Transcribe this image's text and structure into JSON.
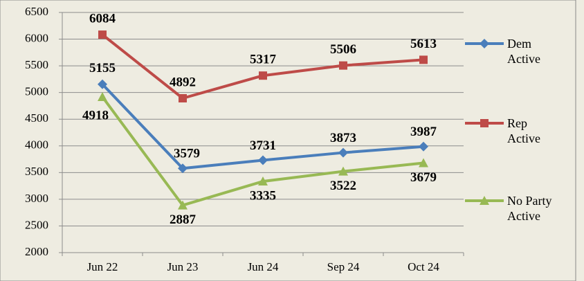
{
  "chart_data": {
    "type": "line",
    "categories": [
      "Jun 22",
      "Jun 23",
      "Jun 24",
      "Sep 24",
      "Oct 24"
    ],
    "series": [
      {
        "name": "Dem Active",
        "color": "#4a7ebb",
        "marker": "diamond",
        "values": [
          5155,
          3579,
          3731,
          3873,
          3987
        ]
      },
      {
        "name": "Rep Active",
        "color": "#be4b48",
        "marker": "square",
        "values": [
          6084,
          4892,
          5317,
          5506,
          5613
        ]
      },
      {
        "name": "No Party Active",
        "color": "#98b954",
        "marker": "triangle",
        "values": [
          4918,
          2887,
          3335,
          3522,
          3679
        ]
      }
    ],
    "ylim": [
      2000,
      6500
    ],
    "yticks": [
      2000,
      2500,
      3000,
      3500,
      4000,
      4500,
      5000,
      5500,
      6000,
      6500
    ],
    "grid": true,
    "legend": "right"
  }
}
